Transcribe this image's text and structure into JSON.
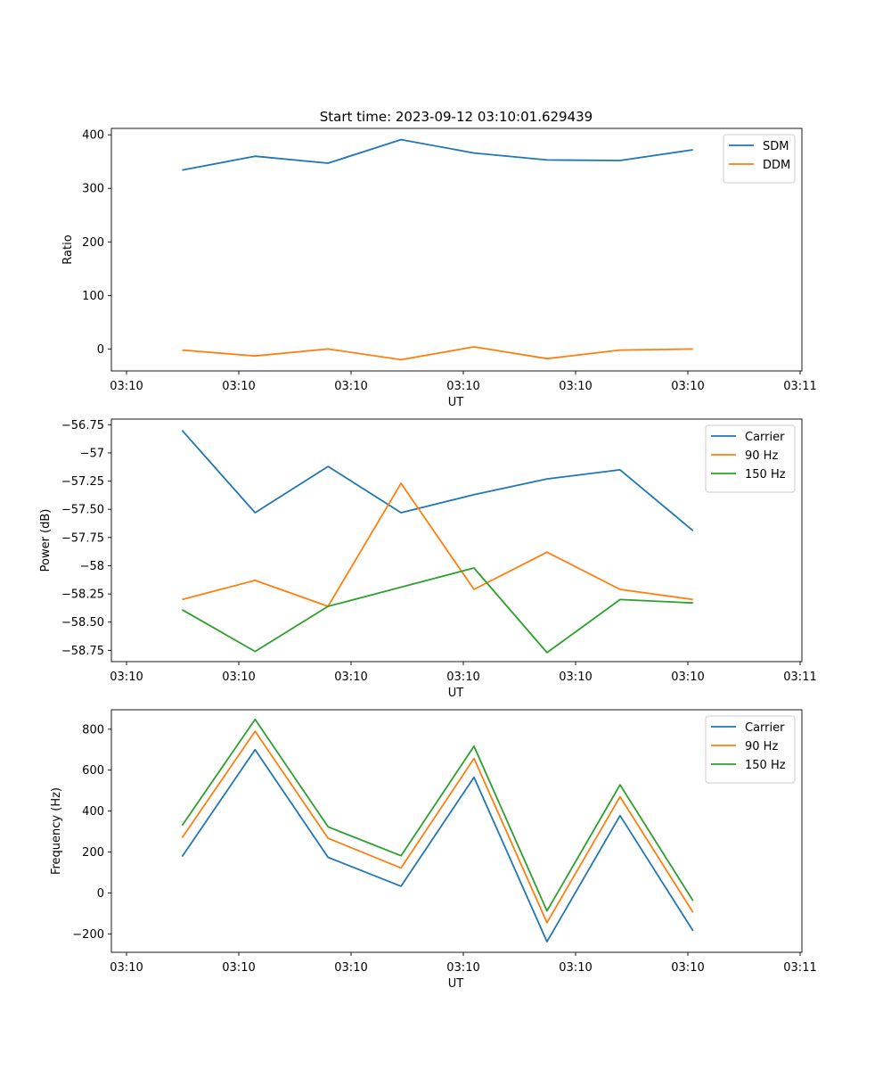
{
  "figure_title": "Start time: 2023-09-12 03:10:01.629439",
  "chart_data": [
    {
      "type": "line",
      "title": "Start time: 2023-09-12 03:10:01.629439",
      "xlabel": "UT",
      "ylabel": "Ratio",
      "x_tick_labels": [
        "03:10",
        "03:10",
        "03:10",
        "03:10",
        "03:10",
        "03:10",
        "03:11"
      ],
      "x": [
        0.5,
        1.15,
        1.8,
        2.45,
        3.1,
        3.75,
        4.4,
        5.05
      ],
      "xlim": [
        -0.13,
        6.02
      ],
      "ylim": [
        -41,
        412
      ],
      "yticks": [
        0,
        100,
        200,
        300,
        400
      ],
      "grid": false,
      "legend": "top-right",
      "series": [
        {
          "name": "SDM",
          "color": "#1f77b4",
          "values": [
            334,
            360,
            347,
            391,
            366,
            353,
            352,
            372
          ]
        },
        {
          "name": "DDM",
          "color": "#ff7f0e",
          "values": [
            -2,
            -13,
            0,
            -20,
            4,
            -18,
            -2,
            0
          ]
        }
      ]
    },
    {
      "type": "line",
      "xlabel": "UT",
      "ylabel": "Power (dB)",
      "x_tick_labels": [
        "03:10",
        "03:10",
        "03:10",
        "03:10",
        "03:10",
        "03:10",
        "03:11"
      ],
      "x": [
        0.5,
        1.15,
        1.8,
        2.45,
        3.1,
        3.75,
        4.4,
        5.05
      ],
      "xlim": [
        -0.13,
        6.02
      ],
      "ylim": [
        -58.85,
        -56.7
      ],
      "yticks": [
        -58.75,
        -58.5,
        -58.25,
        -58.0,
        -57.75,
        -57.5,
        -57.25,
        -57.0,
        -56.75
      ],
      "grid": false,
      "legend": "top-right",
      "series": [
        {
          "name": "Carrier",
          "color": "#1f77b4",
          "values": [
            -56.8,
            -57.53,
            -57.12,
            -57.53,
            -57.37,
            -57.23,
            -57.15,
            -57.69
          ]
        },
        {
          "name": "90 Hz",
          "color": "#ff7f0e",
          "values": [
            -58.3,
            -58.13,
            -58.36,
            -57.27,
            -58.21,
            -57.88,
            -58.21,
            -58.3
          ]
        },
        {
          "name": "150 Hz",
          "color": "#2ca02c",
          "values": [
            -58.39,
            -58.76,
            -58.36,
            -58.19,
            -58.02,
            -58.77,
            -58.3,
            -58.33
          ]
        }
      ]
    },
    {
      "type": "line",
      "xlabel": "UT",
      "ylabel": "Frequency (Hz)",
      "x_tick_labels": [
        "03:10",
        "03:10",
        "03:10",
        "03:10",
        "03:10",
        "03:10",
        "03:11"
      ],
      "x": [
        0.5,
        1.15,
        1.8,
        2.45,
        3.1,
        3.75,
        4.4,
        5.05
      ],
      "xlim": [
        -0.13,
        6.02
      ],
      "ylim": [
        -290,
        895
      ],
      "yticks": [
        -200,
        0,
        200,
        400,
        600,
        800
      ],
      "grid": false,
      "legend": "top-right",
      "series": [
        {
          "name": "Carrier",
          "color": "#1f77b4",
          "values": [
            178,
            700,
            174,
            33,
            565,
            -238,
            378,
            -185
          ]
        },
        {
          "name": "90 Hz",
          "color": "#ff7f0e",
          "values": [
            270,
            790,
            267,
            122,
            657,
            -145,
            470,
            -95
          ]
        },
        {
          "name": "150 Hz",
          "color": "#2ca02c",
          "values": [
            330,
            848,
            323,
            182,
            717,
            -88,
            528,
            -38
          ]
        }
      ]
    }
  ]
}
